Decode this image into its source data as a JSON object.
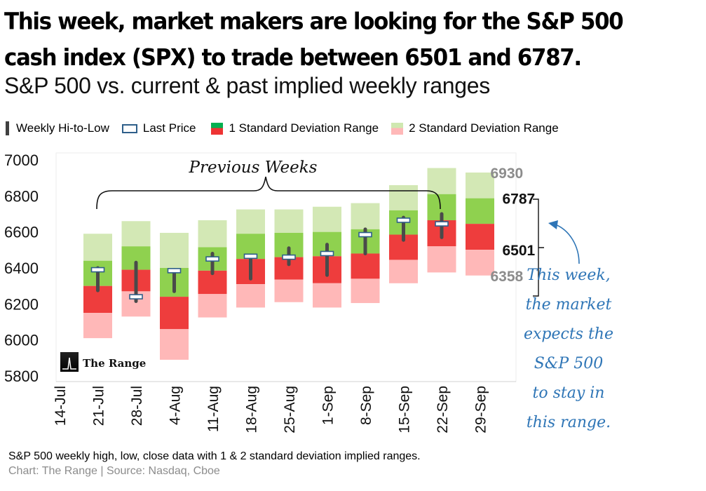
{
  "headline": {
    "line1": "This week, market makers are looking for the S&P 500",
    "line2": "cash index (SPX) to trade between  6501 and 6787."
  },
  "subtitle": "S&P 500 vs. current & past implied weekly ranges",
  "legend": {
    "hilo": "Weekly Hi-to-Low",
    "last": "Last Price",
    "sd1": "1 Standard Deviation Range",
    "sd2": "2 Standard Deviation Range"
  },
  "chart_data": {
    "type": "range-bar",
    "ylim": [
      5800,
      7000
    ],
    "yticks": [
      "7000",
      "6800",
      "6600",
      "6400",
      "6200",
      "6000",
      "5800"
    ],
    "categories": [
      "14-Jul",
      "21-Jul",
      "28-Jul",
      "4-Aug",
      "11-Aug",
      "18-Aug",
      "25-Aug",
      "1-Sep",
      "8-Sep",
      "15-Sep",
      "22-Sep",
      "29-Sep"
    ],
    "weeks": [
      {
        "week": "21-Jul",
        "sd2_low": 6010,
        "sd1_low": 6150,
        "mid": 6300,
        "sd1_high": 6440,
        "sd2_high": 6590,
        "hi": 6400,
        "lo": 6275,
        "last": 6390
      },
      {
        "week": "28-Jul",
        "sd2_low": 6130,
        "sd1_low": 6270,
        "mid": 6390,
        "sd1_high": 6520,
        "sd2_high": 6660,
        "hi": 6430,
        "lo": 6215,
        "last": 6240
      },
      {
        "week": "4-Aug",
        "sd2_low": 5890,
        "sd1_low": 6060,
        "mid": 6240,
        "sd1_high": 6400,
        "sd2_high": 6595,
        "hi": 6390,
        "lo": 6270,
        "last": 6385
      },
      {
        "week": "11-Aug",
        "sd2_low": 6125,
        "sd1_low": 6255,
        "mid": 6385,
        "sd1_high": 6515,
        "sd2_high": 6665,
        "hi": 6480,
        "lo": 6370,
        "last": 6450
      },
      {
        "week": "18-Aug",
        "sd2_low": 6180,
        "sd1_low": 6310,
        "mid": 6450,
        "sd1_high": 6590,
        "sd2_high": 6725,
        "hi": 6470,
        "lo": 6340,
        "last": 6465
      },
      {
        "week": "25-Aug",
        "sd2_low": 6210,
        "sd1_low": 6335,
        "mid": 6460,
        "sd1_high": 6595,
        "sd2_high": 6725,
        "hi": 6510,
        "lo": 6420,
        "last": 6460
      },
      {
        "week": "1-Sep",
        "sd2_low": 6180,
        "sd1_low": 6315,
        "mid": 6465,
        "sd1_high": 6600,
        "sd2_high": 6740,
        "hi": 6530,
        "lo": 6360,
        "last": 6480
      },
      {
        "week": "8-Sep",
        "sd2_low": 6205,
        "sd1_low": 6340,
        "mid": 6480,
        "sd1_high": 6615,
        "sd2_high": 6760,
        "hi": 6615,
        "lo": 6480,
        "last": 6585
      },
      {
        "week": "15-Sep",
        "sd2_low": 6315,
        "sd1_low": 6445,
        "mid": 6585,
        "sd1_high": 6720,
        "sd2_high": 6860,
        "hi": 6680,
        "lo": 6555,
        "last": 6665
      },
      {
        "week": "22-Sep",
        "sd2_low": 6375,
        "sd1_low": 6520,
        "mid": 6665,
        "sd1_high": 6810,
        "sd2_high": 6955,
        "hi": 6700,
        "lo": 6570,
        "last": 6645
      },
      {
        "week": "29-Sep",
        "sd2_low": 6358,
        "sd1_low": 6501,
        "mid": 6645,
        "sd1_high": 6787,
        "sd2_high": 6930
      }
    ],
    "labels": {
      "sd2_high": "6930",
      "sd1_high": "6787",
      "sd1_low": "6501",
      "sd2_low": "6358"
    }
  },
  "logo_text": "The Range",
  "annotations": {
    "previous_weeks": "Previous Weeks",
    "this_week": [
      "This week,",
      "the market",
      "expects the",
      "S&P 500",
      "to stay in",
      "this range."
    ]
  },
  "footnote": "S&P 500 weekly high, low, close data with  1 & 2 standard deviation implied ranges.",
  "source": "Chart: The Range | Source: Nasdaq, Cboe",
  "colors": {
    "sd2_upper": "#d3e8b5",
    "sd1_upper": "#8fd14f",
    "sd1_lower": "#ee3d3d",
    "sd2_lower": "#ffb8b8",
    "hilo": "#4a4a4a",
    "last_border": "#2e5f8a",
    "annotation": "#2e75b6"
  }
}
